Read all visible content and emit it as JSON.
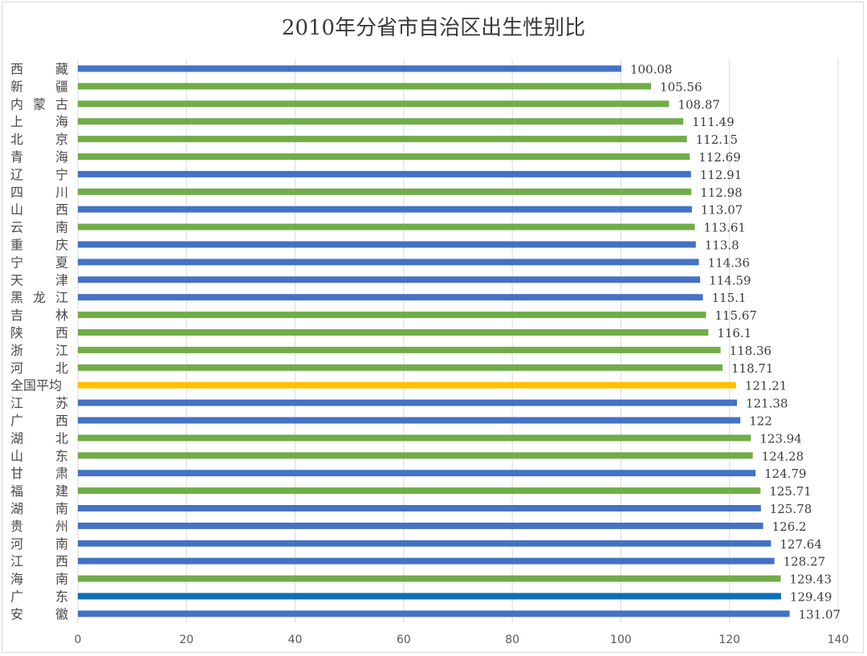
{
  "chart_data": {
    "type": "bar",
    "orientation": "horizontal",
    "title": "2010年分省市自治区出生性别比",
    "xlabel": "",
    "ylabel": "",
    "xlim": [
      0,
      140
    ],
    "x_ticks": [
      0,
      20,
      40,
      60,
      80,
      100,
      120,
      140
    ],
    "grid": "vertical",
    "legend": "none",
    "colors": {
      "blue": "#4472c4",
      "green": "#70ad47",
      "gold": "#ffc000",
      "darkblue": "#0e6eb8"
    },
    "categories": [
      {
        "name": "西藏",
        "value": 100.08,
        "color": "blue"
      },
      {
        "name": "新疆",
        "value": 105.56,
        "color": "green"
      },
      {
        "name": "内蒙古",
        "value": 108.87,
        "color": "green"
      },
      {
        "name": "上海",
        "value": 111.49,
        "color": "green"
      },
      {
        "name": "北京",
        "value": 112.15,
        "color": "green"
      },
      {
        "name": "青海",
        "value": 112.69,
        "color": "green"
      },
      {
        "name": "辽宁",
        "value": 112.91,
        "color": "blue"
      },
      {
        "name": "四川",
        "value": 112.98,
        "color": "green"
      },
      {
        "name": "山西",
        "value": 113.07,
        "color": "blue"
      },
      {
        "name": "云南",
        "value": 113.61,
        "color": "green"
      },
      {
        "name": "重庆",
        "value": 113.8,
        "color": "blue"
      },
      {
        "name": "宁夏",
        "value": 114.36,
        "color": "blue"
      },
      {
        "name": "天津",
        "value": 114.59,
        "color": "blue"
      },
      {
        "name": "黑龙江",
        "value": 115.1,
        "color": "blue"
      },
      {
        "name": "吉林",
        "value": 115.67,
        "color": "green"
      },
      {
        "name": "陕西",
        "value": 116.1,
        "color": "green"
      },
      {
        "name": "浙江",
        "value": 118.36,
        "color": "green"
      },
      {
        "name": "河北",
        "value": 118.71,
        "color": "green"
      },
      {
        "name": "全国平均",
        "value": 121.21,
        "color": "gold"
      },
      {
        "name": "江苏",
        "value": 121.38,
        "color": "blue"
      },
      {
        "name": "广西",
        "value": 122,
        "color": "blue"
      },
      {
        "name": "湖北",
        "value": 123.94,
        "color": "green"
      },
      {
        "name": "山东",
        "value": 124.28,
        "color": "green"
      },
      {
        "name": "甘肃",
        "value": 124.79,
        "color": "blue"
      },
      {
        "name": "福建",
        "value": 125.71,
        "color": "green"
      },
      {
        "name": "湖南",
        "value": 125.78,
        "color": "blue"
      },
      {
        "name": "贵州",
        "value": 126.2,
        "color": "blue"
      },
      {
        "name": "河南",
        "value": 127.64,
        "color": "blue"
      },
      {
        "name": "江西",
        "value": 128.27,
        "color": "blue"
      },
      {
        "name": "海南",
        "value": 129.43,
        "color": "green"
      },
      {
        "name": "广东",
        "value": 129.49,
        "color": "darkblue"
      },
      {
        "name": "安徽",
        "value": 131.07,
        "color": "blue"
      }
    ]
  }
}
